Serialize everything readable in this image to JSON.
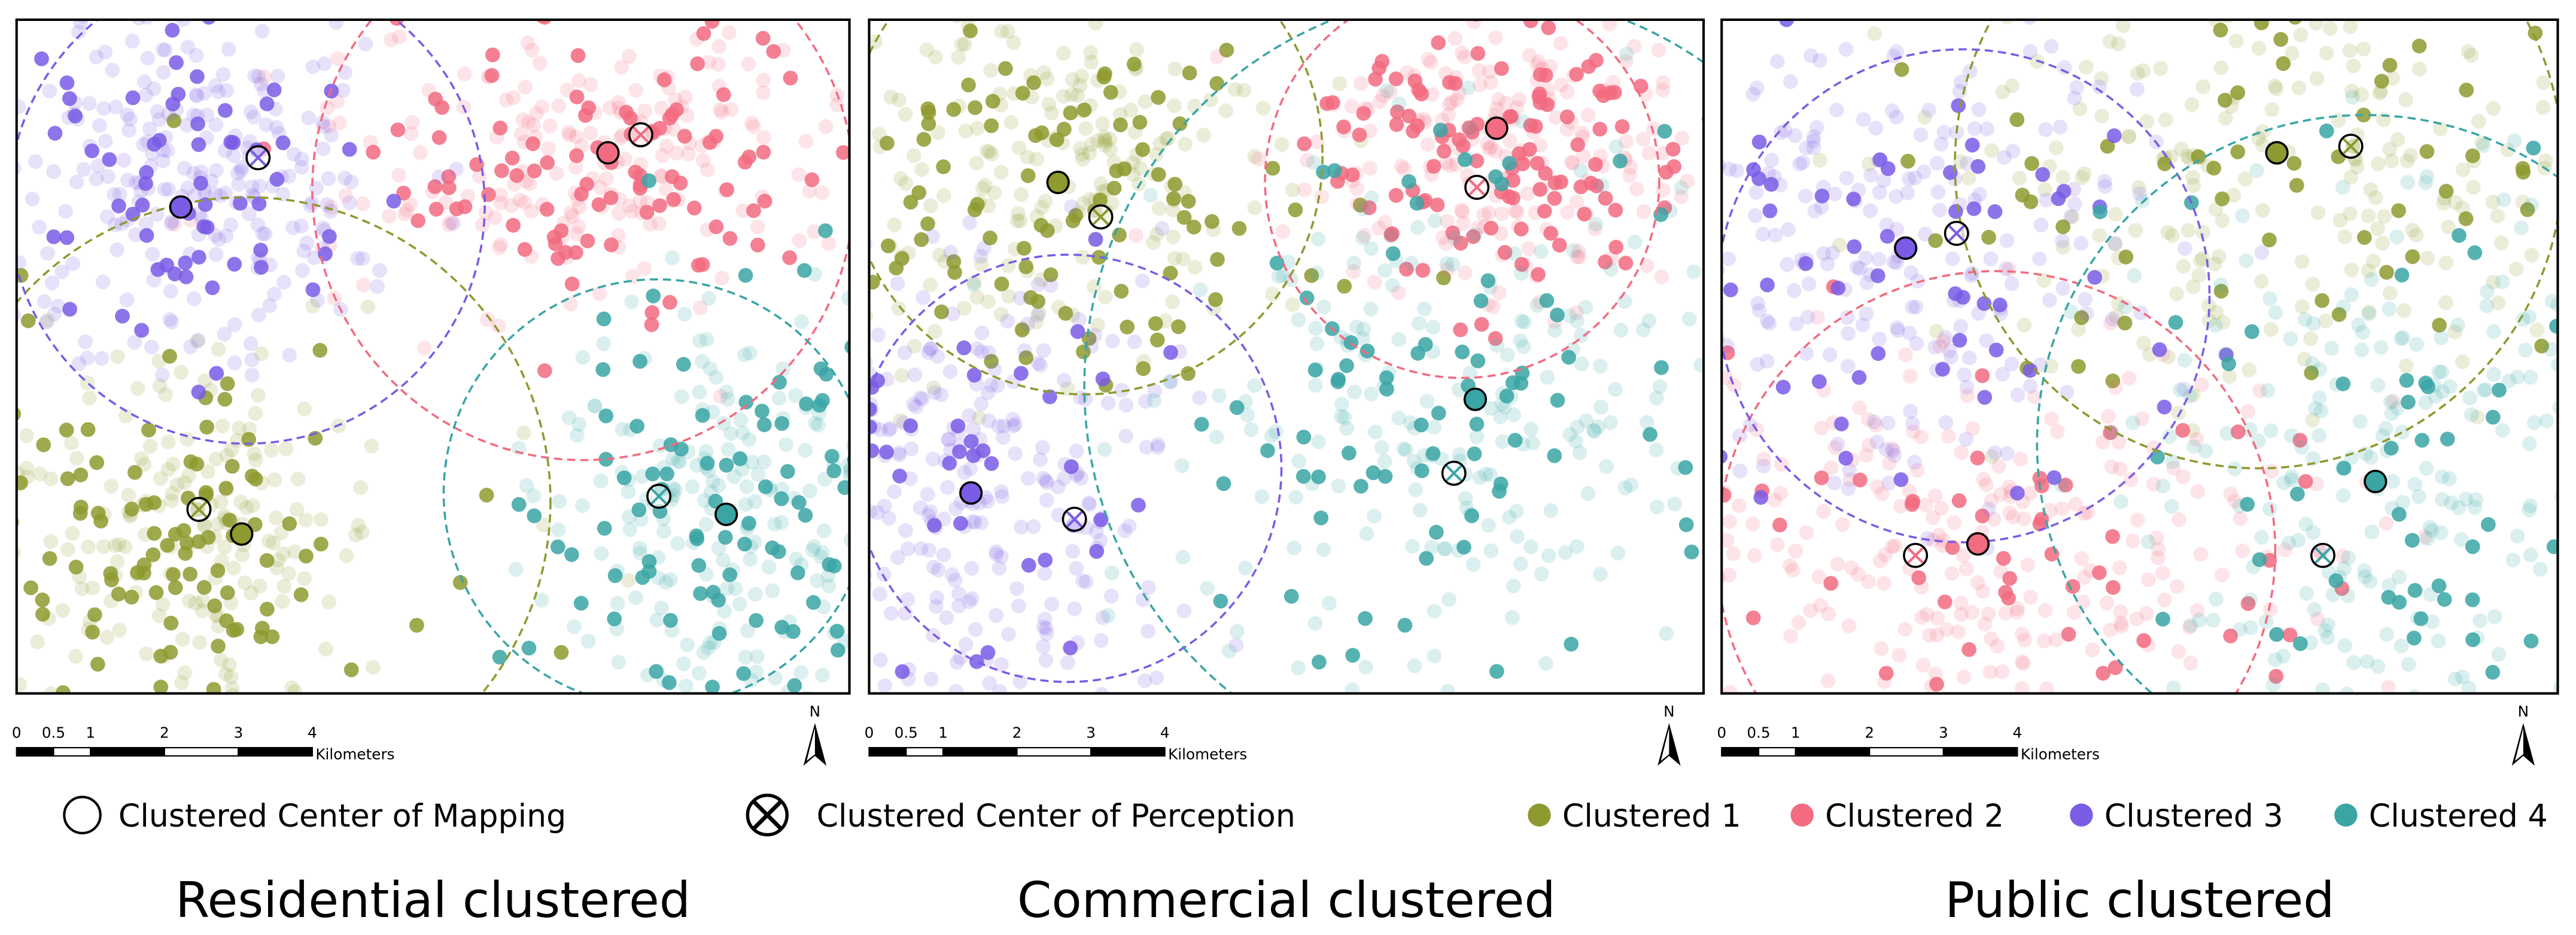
{
  "panels": [
    {
      "title": "Residential clustered"
    },
    {
      "title": "Commercial clustered"
    },
    {
      "title": "Public clustered"
    }
  ],
  "scale_bar": {
    "labels": [
      "0",
      "0.5",
      "1",
      "2",
      "3",
      "4"
    ],
    "unit": "Kilometers"
  },
  "north": "N",
  "legend": {
    "mapping": "Clustered Center of Mapping",
    "perception": "Clustered Center of Perception",
    "clusters": [
      {
        "label": "Clustered 1",
        "color": "#8e9a2f"
      },
      {
        "label": "Clustered 2",
        "color": "#f26b80"
      },
      {
        "label": "Clustered 3",
        "color": "#7a5ce6"
      },
      {
        "label": "Clustered 4",
        "color": "#3aa5a5"
      }
    ]
  }
}
